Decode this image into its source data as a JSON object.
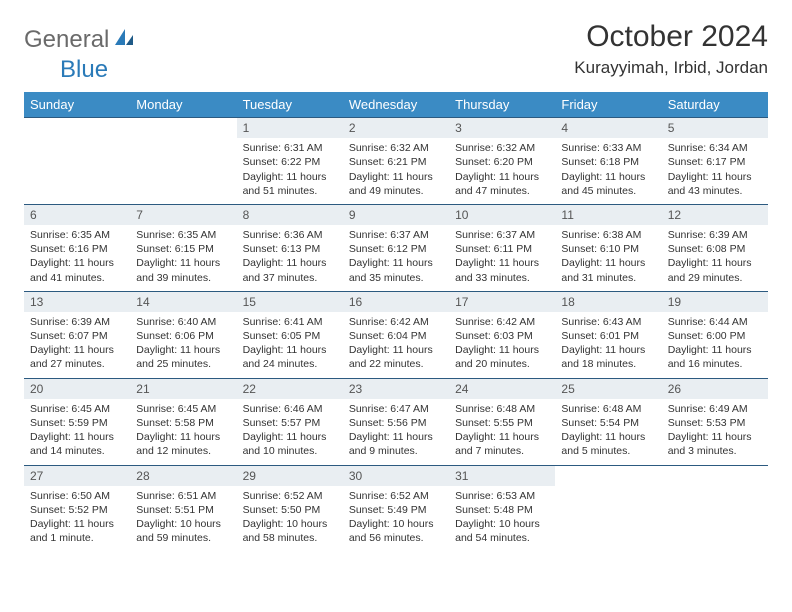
{
  "brand": {
    "general": "General",
    "blue": "Blue"
  },
  "colors": {
    "header_bg": "#3b8bc4",
    "day_bg": "#e9eef2",
    "row_border": "#2c5a80",
    "logo_gray": "#6a6a6a",
    "logo_blue": "#2a7ab8"
  },
  "title": "October 2024",
  "location": "Kurayyimah, Irbid, Jordan",
  "weekdays": [
    "Sunday",
    "Monday",
    "Tuesday",
    "Wednesday",
    "Thursday",
    "Friday",
    "Saturday"
  ],
  "calendar": {
    "start_weekday_index": 2,
    "days": [
      {
        "n": 1,
        "sunrise": "6:31 AM",
        "sunset": "6:22 PM",
        "daylight": "11 hours and 51 minutes."
      },
      {
        "n": 2,
        "sunrise": "6:32 AM",
        "sunset": "6:21 PM",
        "daylight": "11 hours and 49 minutes."
      },
      {
        "n": 3,
        "sunrise": "6:32 AM",
        "sunset": "6:20 PM",
        "daylight": "11 hours and 47 minutes."
      },
      {
        "n": 4,
        "sunrise": "6:33 AM",
        "sunset": "6:18 PM",
        "daylight": "11 hours and 45 minutes."
      },
      {
        "n": 5,
        "sunrise": "6:34 AM",
        "sunset": "6:17 PM",
        "daylight": "11 hours and 43 minutes."
      },
      {
        "n": 6,
        "sunrise": "6:35 AM",
        "sunset": "6:16 PM",
        "daylight": "11 hours and 41 minutes."
      },
      {
        "n": 7,
        "sunrise": "6:35 AM",
        "sunset": "6:15 PM",
        "daylight": "11 hours and 39 minutes."
      },
      {
        "n": 8,
        "sunrise": "6:36 AM",
        "sunset": "6:13 PM",
        "daylight": "11 hours and 37 minutes."
      },
      {
        "n": 9,
        "sunrise": "6:37 AM",
        "sunset": "6:12 PM",
        "daylight": "11 hours and 35 minutes."
      },
      {
        "n": 10,
        "sunrise": "6:37 AM",
        "sunset": "6:11 PM",
        "daylight": "11 hours and 33 minutes."
      },
      {
        "n": 11,
        "sunrise": "6:38 AM",
        "sunset": "6:10 PM",
        "daylight": "11 hours and 31 minutes."
      },
      {
        "n": 12,
        "sunrise": "6:39 AM",
        "sunset": "6:08 PM",
        "daylight": "11 hours and 29 minutes."
      },
      {
        "n": 13,
        "sunrise": "6:39 AM",
        "sunset": "6:07 PM",
        "daylight": "11 hours and 27 minutes."
      },
      {
        "n": 14,
        "sunrise": "6:40 AM",
        "sunset": "6:06 PM",
        "daylight": "11 hours and 25 minutes."
      },
      {
        "n": 15,
        "sunrise": "6:41 AM",
        "sunset": "6:05 PM",
        "daylight": "11 hours and 24 minutes."
      },
      {
        "n": 16,
        "sunrise": "6:42 AM",
        "sunset": "6:04 PM",
        "daylight": "11 hours and 22 minutes."
      },
      {
        "n": 17,
        "sunrise": "6:42 AM",
        "sunset": "6:03 PM",
        "daylight": "11 hours and 20 minutes."
      },
      {
        "n": 18,
        "sunrise": "6:43 AM",
        "sunset": "6:01 PM",
        "daylight": "11 hours and 18 minutes."
      },
      {
        "n": 19,
        "sunrise": "6:44 AM",
        "sunset": "6:00 PM",
        "daylight": "11 hours and 16 minutes."
      },
      {
        "n": 20,
        "sunrise": "6:45 AM",
        "sunset": "5:59 PM",
        "daylight": "11 hours and 14 minutes."
      },
      {
        "n": 21,
        "sunrise": "6:45 AM",
        "sunset": "5:58 PM",
        "daylight": "11 hours and 12 minutes."
      },
      {
        "n": 22,
        "sunrise": "6:46 AM",
        "sunset": "5:57 PM",
        "daylight": "11 hours and 10 minutes."
      },
      {
        "n": 23,
        "sunrise": "6:47 AM",
        "sunset": "5:56 PM",
        "daylight": "11 hours and 9 minutes."
      },
      {
        "n": 24,
        "sunrise": "6:48 AM",
        "sunset": "5:55 PM",
        "daylight": "11 hours and 7 minutes."
      },
      {
        "n": 25,
        "sunrise": "6:48 AM",
        "sunset": "5:54 PM",
        "daylight": "11 hours and 5 minutes."
      },
      {
        "n": 26,
        "sunrise": "6:49 AM",
        "sunset": "5:53 PM",
        "daylight": "11 hours and 3 minutes."
      },
      {
        "n": 27,
        "sunrise": "6:50 AM",
        "sunset": "5:52 PM",
        "daylight": "11 hours and 1 minute."
      },
      {
        "n": 28,
        "sunrise": "6:51 AM",
        "sunset": "5:51 PM",
        "daylight": "10 hours and 59 minutes."
      },
      {
        "n": 29,
        "sunrise": "6:52 AM",
        "sunset": "5:50 PM",
        "daylight": "10 hours and 58 minutes."
      },
      {
        "n": 30,
        "sunrise": "6:52 AM",
        "sunset": "5:49 PM",
        "daylight": "10 hours and 56 minutes."
      },
      {
        "n": 31,
        "sunrise": "6:53 AM",
        "sunset": "5:48 PM",
        "daylight": "10 hours and 54 minutes."
      }
    ]
  },
  "labels": {
    "sunrise": "Sunrise:",
    "sunset": "Sunset:",
    "daylight": "Daylight:"
  }
}
